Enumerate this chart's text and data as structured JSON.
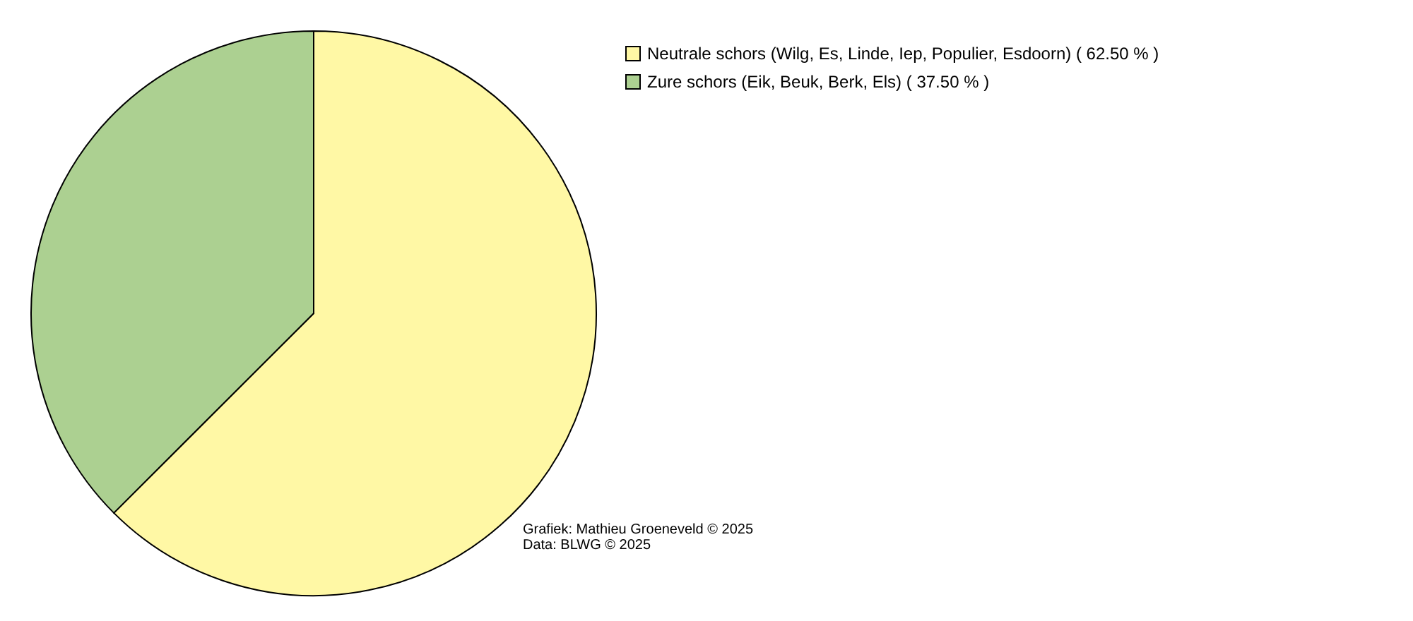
{
  "chart_data": {
    "type": "pie",
    "categories": [
      "Neutrale schors (Wilg, Es, Linde, Iep, Populier, Esdoorn) ( 62.50 % )",
      "Zure schors (Eik, Beuk, Berk, Els) ( 37.50 % )"
    ],
    "values": [
      62.5,
      37.5
    ],
    "colors": [
      "#fff8a5",
      "#acd091"
    ],
    "legend": "top right",
    "annotations": [
      "Grafiek: Mathieu Groeneveld © 2025",
      "Data: BLWG © 2025"
    ]
  }
}
